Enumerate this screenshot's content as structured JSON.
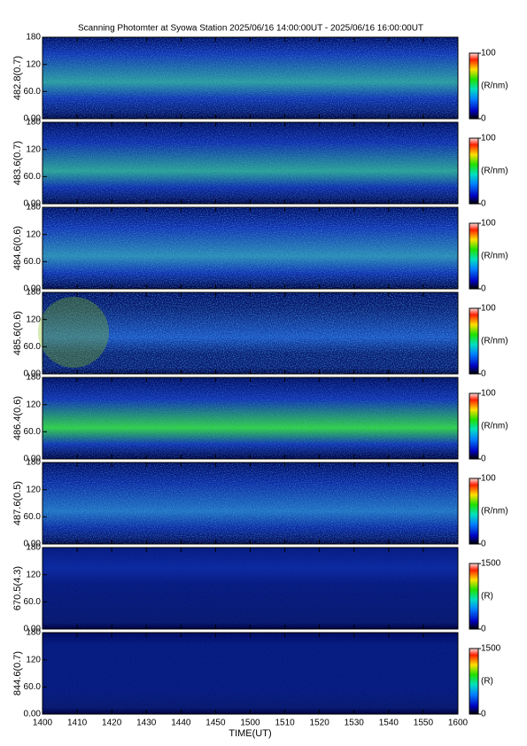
{
  "title": "Scanning Photomter at Syowa Station 2025/06/16 14:00:00UT - 2025/06/16 16:00:00UT",
  "xaxis": {
    "label": "TIME(UT)",
    "xlim": [
      0,
      120
    ],
    "xticks": [
      {
        "value": 0,
        "label": "1400"
      },
      {
        "value": 10,
        "label": "1410"
      },
      {
        "value": 20,
        "label": "1420"
      },
      {
        "value": 30,
        "label": "1430"
      },
      {
        "value": 40,
        "label": "1440"
      },
      {
        "value": 50,
        "label": "1450"
      },
      {
        "value": 60,
        "label": "1500"
      },
      {
        "value": 70,
        "label": "1510"
      },
      {
        "value": 80,
        "label": "1520"
      },
      {
        "value": 90,
        "label": "1530"
      },
      {
        "value": 100,
        "label": "1540"
      },
      {
        "value": 110,
        "label": "1550"
      },
      {
        "value": 120,
        "label": "1600"
      }
    ]
  },
  "chart_data": [
    {
      "type": "heatmap",
      "ylabel": "482.8(0.7)",
      "ylim": [
        0,
        180
      ],
      "yticks": [
        {
          "value": 0,
          "label": "0.00"
        },
        {
          "value": 60,
          "label": "60.0"
        },
        120,
        180
      ],
      "clim": [
        0,
        100
      ],
      "cticks": [
        0,
        100
      ],
      "clabel": "(R/nm)"
    },
    {
      "type": "heatmap",
      "ylabel": "483.6(0.7)",
      "ylim": [
        0,
        180
      ],
      "yticks": [
        {
          "value": 0,
          "label": "0.00"
        },
        {
          "value": 60,
          "label": "60.0"
        },
        120,
        180
      ],
      "clim": [
        0,
        100
      ],
      "cticks": [
        0,
        100
      ],
      "clabel": "(R/nm)"
    },
    {
      "type": "heatmap",
      "ylabel": "484.6(0.6)",
      "ylim": [
        0,
        180
      ],
      "yticks": [
        {
          "value": 0,
          "label": "0.00"
        },
        {
          "value": 60,
          "label": "60.0"
        },
        120,
        180
      ],
      "clim": [
        0,
        100
      ],
      "cticks": [
        0,
        100
      ],
      "clabel": "(R/nm)"
    },
    {
      "type": "heatmap",
      "ylabel": "485.6(0.6)",
      "ylim": [
        0,
        180
      ],
      "yticks": [
        {
          "value": 0,
          "label": "0.00"
        },
        {
          "value": 60,
          "label": "60.0"
        },
        120,
        180
      ],
      "clim": [
        0,
        100
      ],
      "cticks": [
        0,
        100
      ],
      "clabel": "(R/nm)"
    },
    {
      "type": "heatmap",
      "ylabel": "486.4(0.6)",
      "ylim": [
        0,
        180
      ],
      "yticks": [
        {
          "value": 0,
          "label": "0.00"
        },
        {
          "value": 60,
          "label": "60.0"
        },
        120,
        180
      ],
      "clim": [
        0,
        100
      ],
      "cticks": [
        0,
        100
      ],
      "clabel": "(R/nm)"
    },
    {
      "type": "heatmap",
      "ylabel": "487.6(0.5)",
      "ylim": [
        0,
        180
      ],
      "yticks": [
        {
          "value": 0,
          "label": "0.00"
        },
        {
          "value": 60,
          "label": "60.0"
        },
        120,
        180
      ],
      "clim": [
        0,
        100
      ],
      "cticks": [
        0,
        100
      ],
      "clabel": "(R/nm)"
    },
    {
      "type": "heatmap",
      "ylabel": "670.5(4.3)",
      "ylim": [
        0,
        180
      ],
      "yticks": [
        {
          "value": 0,
          "label": "0.00"
        },
        {
          "value": 60,
          "label": "60.0"
        },
        120,
        180
      ],
      "clim": [
        0,
        1500
      ],
      "cticks": [
        0,
        1500
      ],
      "clabel": "(R)"
    },
    {
      "type": "heatmap",
      "ylabel": "844.6(0.7)",
      "ylim": [
        0,
        180
      ],
      "yticks": [
        {
          "value": 0,
          "label": "0.00"
        },
        {
          "value": 60,
          "label": "60.0"
        },
        120,
        180
      ],
      "clim": [
        0,
        1500
      ],
      "cticks": [
        0,
        1500
      ],
      "clabel": "(R)"
    }
  ]
}
